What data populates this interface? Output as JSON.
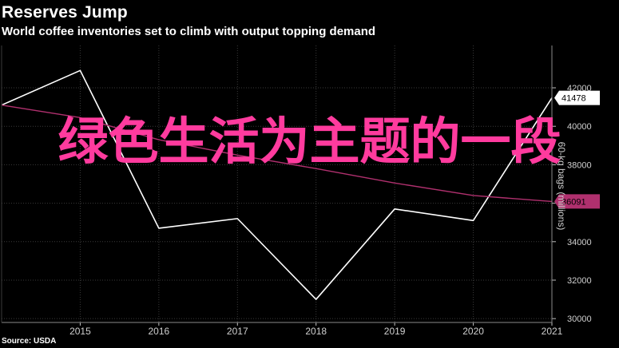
{
  "chart_data": {
    "type": "line",
    "title": "Reserves Jump",
    "subtitle": "World coffee inventories set to climb with output topping demand",
    "source": "Source: USDA",
    "ylabel": "60-kg bags (millions)",
    "x": [
      2014,
      2015,
      2016,
      2017,
      2018,
      2019,
      2020,
      2021
    ],
    "x_ticks": [
      "2015",
      "2016",
      "2017",
      "2018",
      "2019",
      "2020",
      "2021"
    ],
    "y_ticks": [
      "30000",
      "32000",
      "34000",
      "36000",
      "38000",
      "40000",
      "42000"
    ],
    "ylim": [
      29800,
      44200
    ],
    "series": [
      {
        "color": "#ffffff",
        "values": [
          41100,
          42900,
          34700,
          35200,
          31000,
          35700,
          35100,
          41478
        ],
        "last_label": "41478"
      },
      {
        "color": "#b0306e",
        "values": [
          41100,
          40450,
          39300,
          38500,
          37800,
          37050,
          36400,
          36091
        ],
        "last_label": "36091"
      }
    ],
    "grid": true,
    "axis_side": "right"
  },
  "overlay_text": "绿色生活为主题的一段"
}
